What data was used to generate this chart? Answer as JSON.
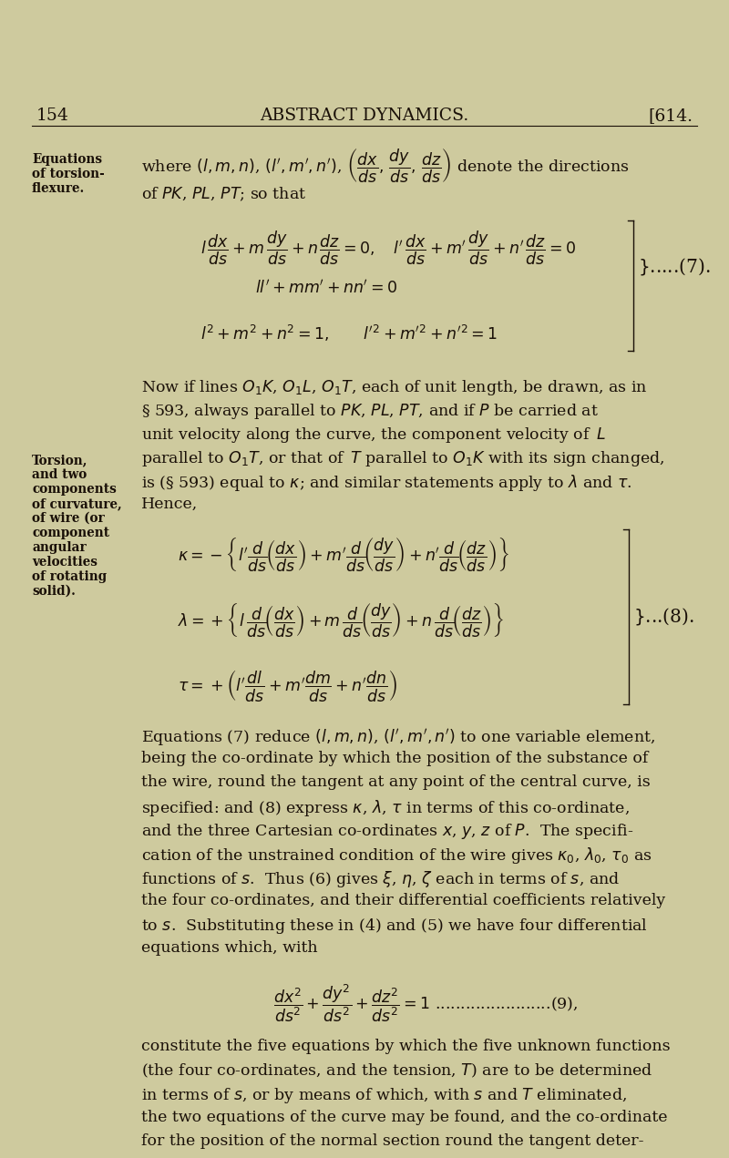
{
  "bg_color": "#ceca9e",
  "text_color": "#1a1008",
  "font_size_body": 12.5,
  "font_size_small": 9.8,
  "font_size_header": 13.5,
  "page_num_left": "154",
  "page_num_right": "[614.",
  "header_center": "ABSTRACT DYNAMICS.",
  "side_note1": [
    "Equations",
    "of torsion-",
    "flexure."
  ],
  "side_note2": [
    "Torsion,",
    "and two",
    "components",
    "of curvature,",
    "of wire (or",
    "component",
    "angular",
    "velocities",
    "of rotating",
    "solid)."
  ]
}
